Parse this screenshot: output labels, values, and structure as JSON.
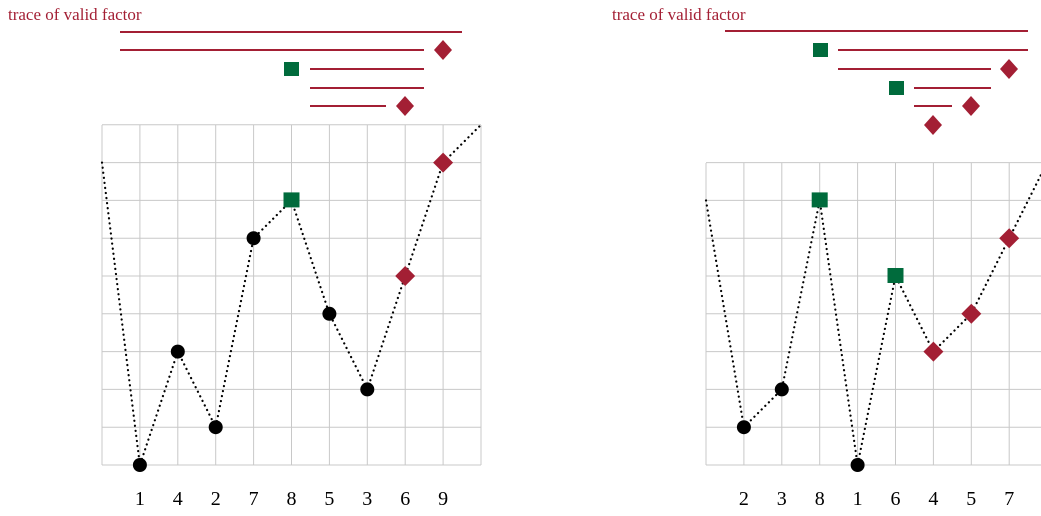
{
  "colors": {
    "trace": "#a31f34",
    "square": "#006b3c",
    "diamond": "#a31f34",
    "dot": "#000000",
    "grid": "#c8c8c8"
  },
  "panels": [
    {
      "caption": "trace of valid factor",
      "sequence": [
        "1",
        "4",
        "2",
        "7",
        "8",
        "5",
        "3",
        "6",
        "9"
      ],
      "values": [
        1,
        4,
        2,
        7,
        8,
        5,
        3,
        6,
        9
      ],
      "markers": [
        "dot",
        "dot",
        "dot",
        "dot",
        "square",
        "dot",
        "dot",
        "diamond",
        "diamond"
      ],
      "left_end": 9,
      "right_end": 9
    },
    {
      "caption": "trace of valid factor",
      "sequence": [
        "2",
        "3",
        "8",
        "1",
        "6",
        "4",
        "5",
        "7"
      ],
      "values": [
        2,
        3,
        8,
        1,
        6,
        4,
        5,
        7
      ],
      "markers": [
        "dot",
        "dot",
        "square",
        "dot",
        "square",
        "diamond",
        "diamond",
        "diamond"
      ],
      "left_end": 8,
      "right_end": 8
    }
  ]
}
